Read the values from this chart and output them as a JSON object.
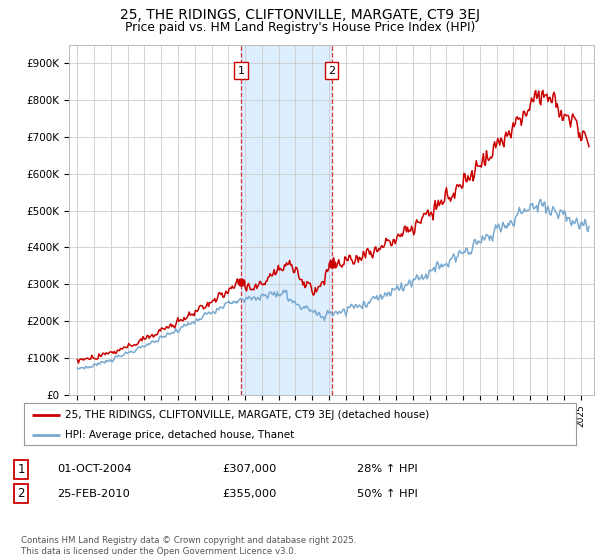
{
  "title_line1": "25, THE RIDINGS, CLIFTONVILLE, MARGATE, CT9 3EJ",
  "title_line2": "Price paid vs. HM Land Registry's House Price Index (HPI)",
  "ylim": [
    0,
    950000
  ],
  "yticks": [
    0,
    100000,
    200000,
    300000,
    400000,
    500000,
    600000,
    700000,
    800000,
    900000
  ],
  "ytick_labels": [
    "£0",
    "£100K",
    "£200K",
    "£300K",
    "£400K",
    "£500K",
    "£600K",
    "£700K",
    "£800K",
    "£900K"
  ],
  "legend_line1": "25, THE RIDINGS, CLIFTONVILLE, MARGATE, CT9 3EJ (detached house)",
  "legend_line2": "HPI: Average price, detached house, Thanet",
  "annotation1_label": "1",
  "annotation1_date": "01-OCT-2004",
  "annotation1_price": "£307,000",
  "annotation1_hpi": "28% ↑ HPI",
  "annotation2_label": "2",
  "annotation2_date": "25-FEB-2010",
  "annotation2_price": "£355,000",
  "annotation2_hpi": "50% ↑ HPI",
  "footer": "Contains HM Land Registry data © Crown copyright and database right 2025.\nThis data is licensed under the Open Government Licence v3.0.",
  "red_color": "#cc0000",
  "blue_color": "#7aaad0",
  "marker1_x": 2004.75,
  "marker1_y": 307000,
  "marker2_x": 2010.15,
  "marker2_y": 355000,
  "vline1_x": 2004.75,
  "vline2_x": 2010.15,
  "background_color": "#ffffff",
  "grid_color": "#cccccc",
  "span_color": "#ddeeff",
  "xlim_left": 1994.5,
  "xlim_right": 2025.8
}
